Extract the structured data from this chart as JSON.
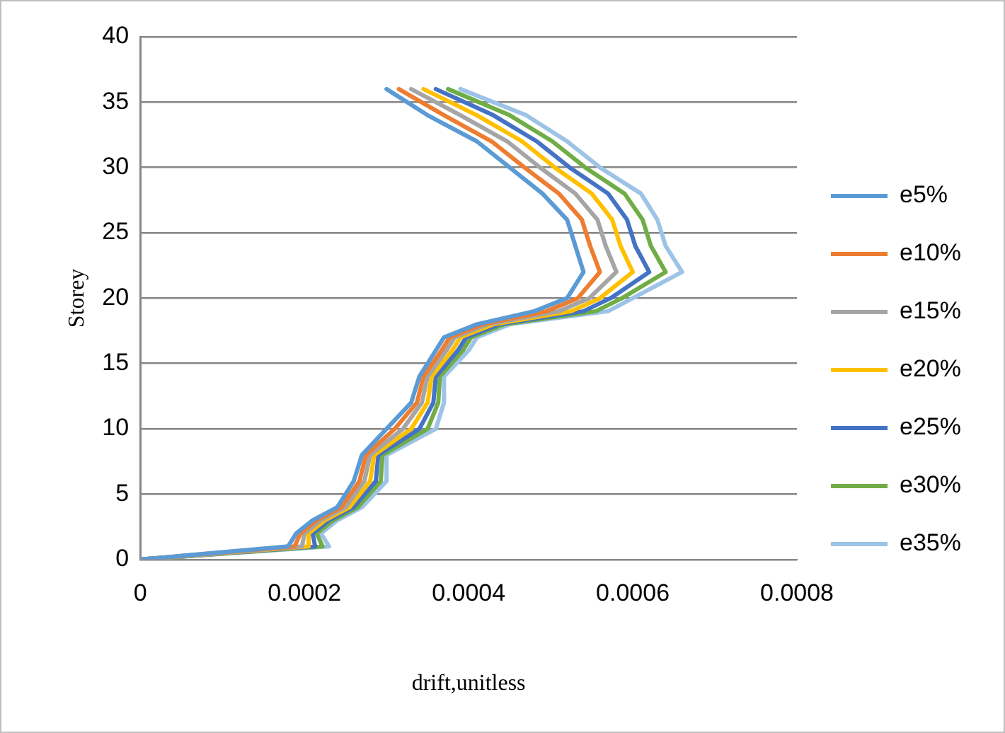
{
  "chart_data": {
    "type": "line",
    "xlabel": "drift,unitless",
    "ylabel": "Storey",
    "xlim": [
      0,
      0.0008
    ],
    "xticks": [
      0,
      0.0002,
      0.0004,
      0.0006,
      0.0008
    ],
    "ylim": [
      0,
      40
    ],
    "yticks": [
      0,
      5,
      10,
      15,
      20,
      25,
      30,
      35,
      40
    ],
    "grid": "y",
    "legend": "right",
    "marker": "none",
    "line_style": "solid",
    "series": [
      {
        "name": "e5%",
        "color": "#5b9bd5",
        "x": [
          0,
          0.00018,
          0.00019,
          0.00021,
          0.00024,
          0.00026,
          0.00027,
          0.0003,
          0.00033,
          0.00034,
          0.00036,
          0.00037,
          0.00041,
          0.00048,
          0.00052,
          0.00054,
          0.00053,
          0.00052,
          0.00049,
          0.00045,
          0.00041,
          0.00035,
          0.0003
        ],
        "values": [
          0,
          1,
          2,
          3,
          4,
          6,
          8,
          10,
          12,
          14,
          16,
          17,
          18,
          19,
          20,
          22,
          24,
          26,
          28,
          30,
          32,
          34,
          36
        ]
      },
      {
        "name": "e10%",
        "color": "#ed7d31",
        "x": [
          0,
          0.000188,
          0.000195,
          0.000215,
          0.000245,
          0.000267,
          0.000275,
          0.00031,
          0.000337,
          0.000345,
          0.000367,
          0.000377,
          0.000417,
          0.000495,
          0.000533,
          0.00056,
          0.000548,
          0.000538,
          0.00051,
          0.000468,
          0.000428,
          0.00037,
          0.000315
        ],
        "values": [
          0,
          1,
          2,
          3,
          4,
          6,
          8,
          10,
          12,
          14,
          16,
          17,
          18,
          19,
          20,
          22,
          24,
          26,
          28,
          30,
          32,
          34,
          36
        ]
      },
      {
        "name": "e15%",
        "color": "#a5a5a5",
        "x": [
          0,
          0.000197,
          0.0002,
          0.00022,
          0.00025,
          0.000273,
          0.00028,
          0.00032,
          0.000343,
          0.00035,
          0.000373,
          0.000383,
          0.000423,
          0.00051,
          0.000547,
          0.00058,
          0.000567,
          0.000557,
          0.00053,
          0.000487,
          0.000447,
          0.00039,
          0.00033
        ],
        "values": [
          0,
          1,
          2,
          3,
          4,
          6,
          8,
          10,
          12,
          14,
          16,
          17,
          18,
          19,
          20,
          22,
          24,
          26,
          28,
          30,
          32,
          34,
          36
        ]
      },
      {
        "name": "e20%",
        "color": "#ffc000",
        "x": [
          0,
          0.000205,
          0.000205,
          0.000225,
          0.000255,
          0.00028,
          0.000285,
          0.00033,
          0.00035,
          0.000355,
          0.00038,
          0.00039,
          0.00043,
          0.000525,
          0.00056,
          0.0006,
          0.000585,
          0.000575,
          0.00055,
          0.000505,
          0.000465,
          0.00041,
          0.000345
        ],
        "values": [
          0,
          1,
          2,
          3,
          4,
          6,
          8,
          10,
          12,
          14,
          16,
          17,
          18,
          19,
          20,
          22,
          24,
          26,
          28,
          30,
          32,
          34,
          36
        ]
      },
      {
        "name": "e25%",
        "color": "#4472c4",
        "x": [
          0,
          0.000213,
          0.00021,
          0.00023,
          0.00026,
          0.000287,
          0.00029,
          0.00034,
          0.000357,
          0.00036,
          0.000387,
          0.000397,
          0.000437,
          0.00054,
          0.000573,
          0.00062,
          0.000603,
          0.000593,
          0.00057,
          0.000523,
          0.000483,
          0.00043,
          0.00036
        ],
        "values": [
          0,
          1,
          2,
          3,
          4,
          6,
          8,
          10,
          12,
          14,
          16,
          17,
          18,
          19,
          20,
          22,
          24,
          26,
          28,
          30,
          32,
          34,
          36
        ]
      },
      {
        "name": "e30%",
        "color": "#70ad47",
        "x": [
          0,
          0.000222,
          0.000215,
          0.000235,
          0.000265,
          0.000293,
          0.000295,
          0.00035,
          0.000363,
          0.000365,
          0.000393,
          0.000403,
          0.000443,
          0.000555,
          0.000587,
          0.00064,
          0.000622,
          0.000612,
          0.00059,
          0.000542,
          0.000502,
          0.00045,
          0.000375
        ],
        "values": [
          0,
          1,
          2,
          3,
          4,
          6,
          8,
          10,
          12,
          14,
          16,
          17,
          18,
          19,
          20,
          22,
          24,
          26,
          28,
          30,
          32,
          34,
          36
        ]
      },
      {
        "name": "e35%",
        "color": "#9dc3e6",
        "x": [
          0,
          0.00023,
          0.00022,
          0.00024,
          0.00027,
          0.0003,
          0.0003,
          0.00036,
          0.00037,
          0.00037,
          0.0004,
          0.00041,
          0.00045,
          0.00057,
          0.0006,
          0.00066,
          0.00064,
          0.00063,
          0.00061,
          0.00056,
          0.00052,
          0.00047,
          0.00039
        ],
        "values": [
          0,
          1,
          2,
          3,
          4,
          6,
          8,
          10,
          12,
          14,
          16,
          17,
          18,
          19,
          20,
          22,
          24,
          26,
          28,
          30,
          32,
          34,
          36
        ]
      }
    ]
  }
}
